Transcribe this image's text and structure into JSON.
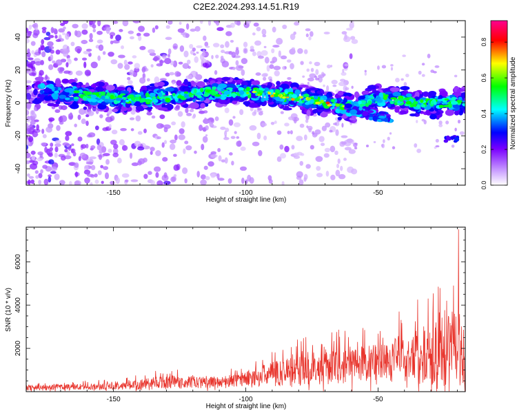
{
  "title": "C2E2.2024.293.14.51.R19",
  "chart_data": [
    {
      "type": "heatmap",
      "xlabel": "Height of straight line (km)",
      "ylabel": "Frequency (Hz)",
      "xlim": [
        -183,
        -17
      ],
      "ylim": [
        -50,
        50
      ],
      "x_ticks": [
        -150,
        -100,
        -50
      ],
      "y_ticks": [
        -40,
        -20,
        0,
        20,
        40
      ],
      "ridge_main": [
        {
          "x": -177,
          "y": 7
        },
        {
          "x": -160,
          "y": 4
        },
        {
          "x": -140,
          "y": 2
        },
        {
          "x": -125,
          "y": 5
        },
        {
          "x": -110,
          "y": 7
        },
        {
          "x": -95,
          "y": 6
        },
        {
          "x": -80,
          "y": 3
        },
        {
          "x": -70,
          "y": 0
        },
        {
          "x": -60,
          "y": -3
        },
        {
          "x": -50,
          "y": 3
        },
        {
          "x": -40,
          "y": 1
        },
        {
          "x": -30,
          "y": -1
        },
        {
          "x": -17,
          "y": 1
        }
      ],
      "ridge_secondary": [
        {
          "x": -62,
          "y": -4
        },
        {
          "x": -50,
          "y": -8
        },
        {
          "x": -45,
          "y": -9
        }
      ],
      "isolated_blob": {
        "x": -22,
        "y": -22
      },
      "colorbar": {
        "label": "Normalized spectral amplitude",
        "ticks": [
          0.0,
          0.2,
          0.4,
          0.6,
          0.8
        ],
        "range": [
          0.0,
          0.92
        ],
        "colormap": [
          "#ffffff",
          "#8a00ff",
          "#0000ff",
          "#00ffff",
          "#00ff00",
          "#ffff00",
          "#ff0000",
          "#ff0080"
        ]
      }
    },
    {
      "type": "line",
      "xlabel": "Height of straight line (km)",
      "ylabel": "SNR (10 * v/v)",
      "xlim": [
        -183,
        -17
      ],
      "ylim": [
        0,
        7600
      ],
      "x_ticks": [
        -150,
        -100,
        -50
      ],
      "y_ticks": [
        2000,
        4000,
        6000
      ],
      "color": "#e8342c",
      "envelope": [
        {
          "x": -183,
          "base": 150,
          "amp": 250
        },
        {
          "x": -150,
          "base": 200,
          "amp": 350
        },
        {
          "x": -130,
          "base": 350,
          "amp": 700
        },
        {
          "x": -110,
          "base": 350,
          "amp": 550
        },
        {
          "x": -100,
          "base": 500,
          "amp": 800
        },
        {
          "x": -80,
          "base": 800,
          "amp": 1700
        },
        {
          "x": -60,
          "base": 1000,
          "amp": 1900
        },
        {
          "x": -50,
          "base": 1100,
          "amp": 2000
        },
        {
          "x": -40,
          "base": 1200,
          "amp": 2500
        },
        {
          "x": -30,
          "base": 1300,
          "amp": 3200
        },
        {
          "x": -20,
          "base": 1500,
          "amp": 4000
        },
        {
          "x": -17,
          "base": 1300,
          "amp": 3000
        }
      ],
      "peaks": [
        {
          "x": -19.5,
          "y": 7500
        },
        {
          "x": -21.5,
          "y": 4900
        },
        {
          "x": -35,
          "y": 4250
        },
        {
          "x": -31,
          "y": 4300
        },
        {
          "x": -24,
          "y": 4200
        },
        {
          "x": -42,
          "y": 3700
        },
        {
          "x": -55,
          "y": 2850
        },
        {
          "x": -128,
          "y": 950
        }
      ]
    }
  ]
}
